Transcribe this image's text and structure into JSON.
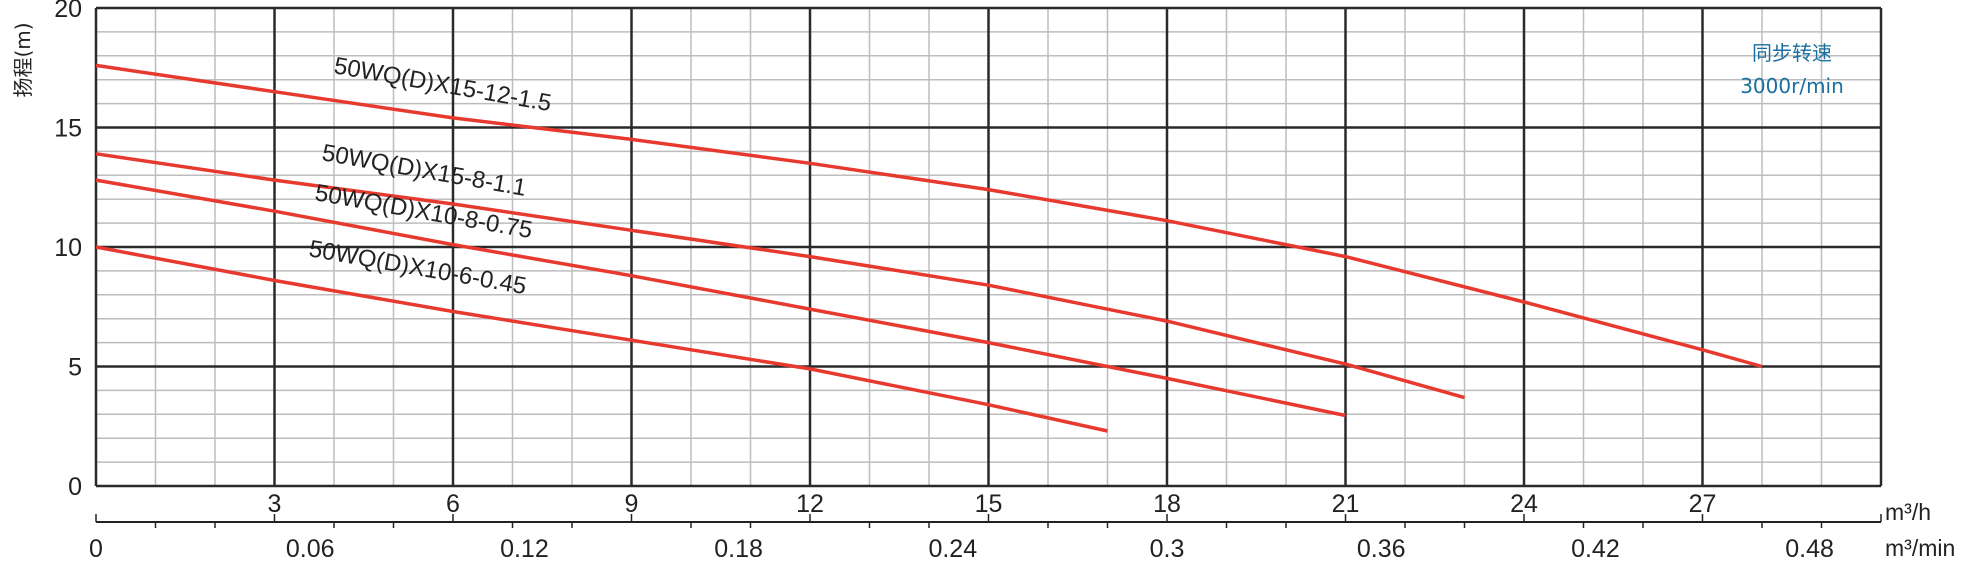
{
  "chart_data": {
    "type": "line",
    "ylabel": "扬程(m)",
    "xlabel_primary_unit": "m³/h",
    "xlabel_secondary_unit": "m³/min",
    "xlim": [
      0,
      30
    ],
    "ylim": [
      0,
      20
    ],
    "grid": true,
    "y_ticks": [
      "0",
      "5",
      "10",
      "15",
      "20"
    ],
    "x_ticks": [
      "3",
      "6",
      "9",
      "12",
      "15",
      "18",
      "21",
      "24",
      "27"
    ],
    "x2_ticks": [
      "0",
      "0.06",
      "0.12",
      "0.18",
      "0.24",
      "0.3",
      "0.36",
      "0.42",
      "0.48"
    ],
    "annotation": [
      "同步转速",
      "3000r/min"
    ],
    "annotation_color": "#1a6fa0",
    "line_color": "#e8392f",
    "series": [
      {
        "name": "50WQ(D)X15-12-1.5",
        "x": [
          0,
          3,
          6,
          9,
          12,
          15,
          18,
          21,
          24,
          27,
          28
        ],
        "y": [
          17.6,
          16.5,
          15.4,
          14.5,
          13.5,
          12.4,
          11.1,
          9.6,
          7.7,
          5.7,
          5.0
        ]
      },
      {
        "name": "50WQ(D)X15-8-1.1",
        "x": [
          0,
          3,
          6,
          9,
          12,
          15,
          18,
          21,
          22,
          23
        ],
        "y": [
          13.9,
          12.8,
          11.8,
          10.7,
          9.6,
          8.4,
          6.9,
          5.1,
          4.4,
          3.7
        ]
      },
      {
        "name": "50WQ(D)X10-8-0.75",
        "x": [
          0,
          3,
          6,
          9,
          12,
          15,
          18,
          21
        ],
        "y": [
          12.8,
          11.5,
          10.1,
          8.8,
          7.4,
          6.0,
          4.5,
          2.95
        ]
      },
      {
        "name": "50WQ(D)X10-6-0.45",
        "x": [
          0,
          3,
          6,
          9,
          12,
          15,
          17
        ],
        "y": [
          10.0,
          8.6,
          7.3,
          6.1,
          4.9,
          3.4,
          2.3
        ]
      }
    ]
  }
}
